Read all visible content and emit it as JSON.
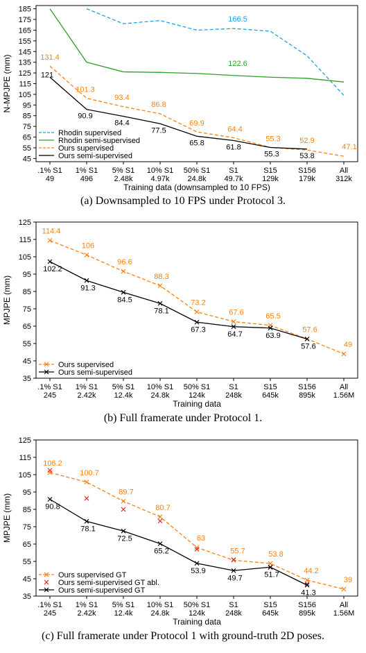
{
  "chart_data": [
    {
      "type": "line",
      "caption": "(a) Downsampled to 10 FPS under Protocol 3.",
      "xlabel": "Training data (downsampled to 10 FPS)",
      "ylabel": "N-MPJPE (mm)",
      "ylim": [
        42,
        188
      ],
      "yticks": [
        45,
        55,
        65,
        75,
        85,
        95,
        105,
        115,
        125,
        135,
        145,
        155,
        165,
        175,
        185
      ],
      "categories": [
        ".1% S1",
        "1% S1",
        "5% S1",
        "10% S1",
        "50% S1",
        "S1",
        "S15",
        "S156",
        "All"
      ],
      "categories_sub": [
        "49",
        "496",
        "2.48k",
        "4.97k",
        "24.8k",
        "49.7k",
        "129k",
        "179k",
        "312k"
      ],
      "legend_position": "lower-left",
      "series": [
        {
          "name": "Rhodin supervised",
          "color": "#1f9fe0",
          "dash": "dashed",
          "marker": "none",
          "values": [
            null,
            185,
            171,
            174,
            165,
            166.5,
            164,
            141,
            104
          ],
          "labels": [
            null,
            null,
            null,
            null,
            null,
            "166.5",
            null,
            null,
            null
          ]
        },
        {
          "name": "Rhodin semi-supervised",
          "color": "#2ca02c",
          "dash": "solid",
          "marker": "none",
          "values": [
            185,
            135,
            126,
            125.5,
            124.5,
            122.6,
            121,
            120,
            116.5
          ],
          "labels": [
            null,
            null,
            null,
            null,
            null,
            "122.6",
            null,
            null,
            null
          ]
        },
        {
          "name": "Ours supervised",
          "color": "#ff7f0e",
          "dash": "dashed",
          "marker": "none",
          "values": [
            131.4,
            101.3,
            93.4,
            86.8,
            69.9,
            64.4,
            55.3,
            52.9,
            47.1
          ],
          "labels": [
            "131.4",
            "101.3",
            "93.4",
            "86.8",
            "69.9",
            "64.4",
            "55.3",
            "52.9",
            "47.1"
          ]
        },
        {
          "name": "Ours semi-supervised",
          "color": "#000000",
          "dash": "solid",
          "marker": "none",
          "values": [
            121,
            90.9,
            84.4,
            77.5,
            65.8,
            61.8,
            55.3,
            53.8,
            null
          ],
          "labels": [
            "121",
            "90.9",
            "84.4",
            "77.5",
            "65.8",
            "61.8",
            "55.3",
            "53.8",
            null
          ]
        }
      ]
    },
    {
      "type": "line",
      "caption": "(b) Full framerate under Protocol 1.",
      "xlabel": "Training data",
      "ylabel": "MPJPE (mm)",
      "ylim": [
        35,
        125
      ],
      "yticks": [
        35,
        45,
        55,
        65,
        75,
        85,
        95,
        105,
        115,
        125
      ],
      "categories": [
        ".1% S1",
        "1% S1",
        "5% S1",
        "10% S1",
        "50% S1",
        "S1",
        "S15",
        "S156",
        "All"
      ],
      "categories_sub": [
        "245",
        "2.42k",
        "12.4k",
        "24.8k",
        "124k",
        "248k",
        "645k",
        "895k",
        "1.56M"
      ],
      "legend_position": "lower-left",
      "series": [
        {
          "name": "Ours supervised",
          "color": "#ff7f0e",
          "dash": "dashed",
          "marker": "x",
          "values": [
            114.4,
            106,
            96.6,
            88.3,
            73.2,
            67.6,
            65.5,
            57.6,
            49
          ],
          "labels": [
            "114.4",
            "106",
            "96.6",
            "88.3",
            "73.2",
            "67.6",
            "65.5",
            "57.6",
            "49"
          ]
        },
        {
          "name": "Ours semi-supervised",
          "color": "#000000",
          "dash": "solid",
          "marker": "x",
          "values": [
            102.2,
            91.3,
            84.5,
            78.1,
            67.3,
            64.7,
            63.9,
            57.6,
            null
          ],
          "labels": [
            "102.2",
            "91.3",
            "84.5",
            "78.1",
            "67.3",
            "64.7",
            "63.9",
            "57.6",
            null
          ]
        }
      ]
    },
    {
      "type": "line",
      "caption": "(c) Full framerate under Protocol 1 with ground-truth 2D poses.",
      "xlabel": "Training data",
      "ylabel": "MPJPE (mm)",
      "ylim": [
        35,
        125
      ],
      "yticks": [
        35,
        45,
        55,
        65,
        75,
        85,
        95,
        105,
        115,
        125
      ],
      "categories": [
        ".1% S1",
        "1% S1",
        "5% S1",
        "10% S1",
        "50% S1",
        "S1",
        "S15",
        "S156",
        "All"
      ],
      "categories_sub": [
        "245",
        "2.42k",
        "12.4k",
        "24.8k",
        "124k",
        "248k",
        "645k",
        "895k",
        "1.56M"
      ],
      "legend_position": "lower-left",
      "series": [
        {
          "name": "Ours supervised GT",
          "color": "#ff7f0e",
          "dash": "dashed",
          "marker": "x",
          "values": [
            106.2,
            100.7,
            89.7,
            80.7,
            63,
            55.7,
            53.8,
            44.2,
            39
          ],
          "labels": [
            "106.2",
            "100.7",
            "89.7",
            "80.7",
            "63",
            "55.7",
            "53.8",
            "44.2",
            "39"
          ]
        },
        {
          "name": "Ours semi-supervised GT abl.",
          "color": "#d62728",
          "dash": "none",
          "marker": "x",
          "values": [
            107.5,
            91.3,
            85,
            78.3,
            62,
            56,
            51.5,
            42,
            null
          ],
          "labels": [
            null,
            null,
            null,
            null,
            null,
            null,
            null,
            null,
            null
          ]
        },
        {
          "name": "Ours semi-supervised GT",
          "color": "#000000",
          "dash": "solid",
          "marker": "x",
          "values": [
            90.8,
            78.1,
            72.5,
            65.2,
            53.9,
            49.7,
            51.7,
            41.3,
            null
          ],
          "labels": [
            "90.8",
            "78.1",
            "72.5",
            "65.2",
            "53.9",
            "49.7",
            "51.7",
            "41.3",
            null
          ]
        }
      ]
    }
  ]
}
